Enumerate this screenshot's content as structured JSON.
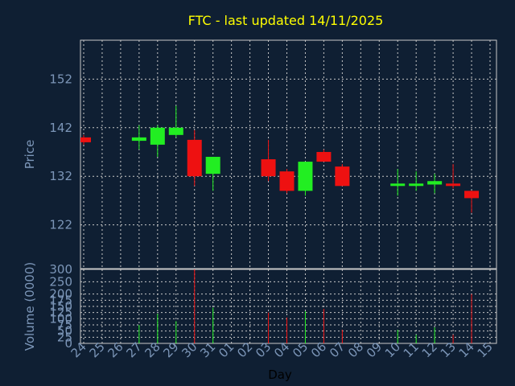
{
  "chart_data": {
    "type": "candlestick",
    "title": "FTC - last updated 14/11/2025",
    "xlabel": "Day",
    "ylabel_price": "Price",
    "ylabel_volume": "Volume (0000)",
    "grid": true,
    "price_ylim": [
      113,
      160
    ],
    "price_ticks": [
      122,
      132,
      142,
      152
    ],
    "volume_ylim": [
      0,
      300
    ],
    "volume_ticks": [
      0,
      25,
      50,
      75,
      100,
      125,
      150,
      175,
      200,
      250,
      300
    ],
    "categories": [
      "24",
      "25",
      "26",
      "27",
      "28",
      "29",
      "30",
      "31",
      "01",
      "02",
      "03",
      "04",
      "05",
      "06",
      "07",
      "08",
      "09",
      "10",
      "11",
      "12",
      "13",
      "14",
      "15"
    ],
    "candles": [
      {
        "day": "24",
        "open": 140.0,
        "high": 140.5,
        "low": 138.5,
        "close": 139.0
      },
      {
        "day": "27",
        "open": 139.3,
        "high": 142.5,
        "low": 137.5,
        "close": 140.0
      },
      {
        "day": "28",
        "open": 138.5,
        "high": 142.5,
        "low": 136.0,
        "close": 142.0
      },
      {
        "day": "29",
        "open": 140.5,
        "high": 146.5,
        "low": 140.0,
        "close": 142.0
      },
      {
        "day": "30",
        "open": 139.5,
        "high": 141.5,
        "low": 130.0,
        "close": 132.0
      },
      {
        "day": "31",
        "open": 132.5,
        "high": 136.0,
        "low": 129.0,
        "close": 136.0
      },
      {
        "day": "03",
        "open": 135.5,
        "high": 139.5,
        "low": 131.0,
        "close": 132.0
      },
      {
        "day": "04",
        "open": 133.0,
        "high": 133.5,
        "low": 128.5,
        "close": 129.0
      },
      {
        "day": "05",
        "open": 129.0,
        "high": 135.0,
        "low": 128.0,
        "close": 135.0
      },
      {
        "day": "06",
        "open": 137.0,
        "high": 137.5,
        "low": 135.0,
        "close": 135.0
      },
      {
        "day": "07",
        "open": 134.0,
        "high": 134.5,
        "low": 130.0,
        "close": 130.0
      },
      {
        "day": "10",
        "open": 130.0,
        "high": 133.5,
        "low": 128.0,
        "close": 130.5
      },
      {
        "day": "11",
        "open": 130.2,
        "high": 133.0,
        "low": 129.0,
        "close": 130.5
      },
      {
        "day": "12",
        "open": 130.3,
        "high": 132.5,
        "low": 128.5,
        "close": 131.0
      },
      {
        "day": "13",
        "open": 130.5,
        "high": 134.5,
        "low": 129.5,
        "close": 130.0
      },
      {
        "day": "14",
        "open": 129.0,
        "high": 129.0,
        "low": 124.5,
        "close": 127.5
      }
    ],
    "volume": [
      {
        "day": "27",
        "value": 75
      },
      {
        "day": "28",
        "value": 120
      },
      {
        "day": "29",
        "value": 90
      },
      {
        "day": "30",
        "value": 300
      },
      {
        "day": "31",
        "value": 145
      },
      {
        "day": "03",
        "value": 125
      },
      {
        "day": "04",
        "value": 105
      },
      {
        "day": "05",
        "value": 130
      },
      {
        "day": "06",
        "value": 140
      },
      {
        "day": "07",
        "value": 55
      },
      {
        "day": "10",
        "value": 55
      },
      {
        "day": "11",
        "value": 35
      },
      {
        "day": "12",
        "value": 65
      },
      {
        "day": "13",
        "value": 35
      },
      {
        "day": "14",
        "value": 200
      }
    ],
    "colors": {
      "background": "#0f1f33",
      "up": "#22ee22",
      "down": "#ee1111",
      "title": "#ffff00",
      "axis_text": "#7c96b8",
      "grid": "#c8c8c8",
      "frame": "#c8c8c8"
    }
  }
}
